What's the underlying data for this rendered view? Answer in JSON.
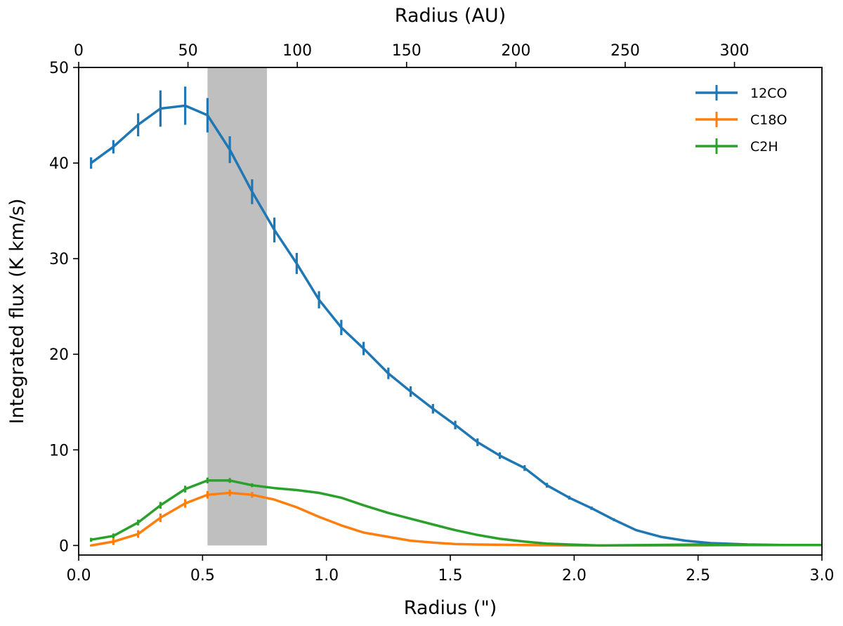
{
  "chart_data": {
    "type": "line",
    "xlabel": "Radius (\")",
    "ylabel": "Integrated flux (K km/s)",
    "top_xlabel": "Radius (AU)",
    "xlim": [
      0,
      3.0
    ],
    "ylim": [
      -1,
      50
    ],
    "top_xlim_au": [
      0,
      340
    ],
    "x_ticks": [
      0.0,
      0.5,
      1.0,
      1.5,
      2.0,
      2.5,
      3.0
    ],
    "x_tick_labels": [
      "0.0",
      "0.5",
      "1.0",
      "1.5",
      "2.0",
      "2.5",
      "3.0"
    ],
    "y_ticks": [
      0,
      10,
      20,
      30,
      40,
      50
    ],
    "y_tick_labels": [
      "0",
      "10",
      "20",
      "30",
      "40",
      "50"
    ],
    "top_ticks_au": [
      0,
      50,
      100,
      150,
      200,
      250,
      300
    ],
    "top_tick_labels": [
      "0",
      "50",
      "100",
      "150",
      "200",
      "250",
      "300"
    ],
    "grid": false,
    "legend_position": "top-right",
    "shaded_region": {
      "x_from": 0.52,
      "x_to": 0.76,
      "color": "#bfbfbf"
    },
    "series": [
      {
        "name": "12CO",
        "color": "#1f77b4",
        "points": [
          [
            0.05,
            40.0,
            0.6
          ],
          [
            0.14,
            41.7,
            0.7
          ],
          [
            0.24,
            44.0,
            1.2
          ],
          [
            0.33,
            45.7,
            1.9
          ],
          [
            0.43,
            46.0,
            2.0
          ],
          [
            0.52,
            45.0,
            1.8
          ],
          [
            0.61,
            41.4,
            1.4
          ],
          [
            0.7,
            37.0,
            1.3
          ],
          [
            0.79,
            33.0,
            1.3
          ],
          [
            0.88,
            29.5,
            1.1
          ],
          [
            0.97,
            25.7,
            0.9
          ],
          [
            1.06,
            22.8,
            0.8
          ],
          [
            1.15,
            20.6,
            0.7
          ],
          [
            1.25,
            18.0,
            0.6
          ],
          [
            1.34,
            16.1,
            0.55
          ],
          [
            1.43,
            14.3,
            0.5
          ],
          [
            1.52,
            12.6,
            0.45
          ],
          [
            1.61,
            10.8,
            0.4
          ],
          [
            1.7,
            9.4,
            0.35
          ],
          [
            1.8,
            8.1,
            0.3
          ],
          [
            1.89,
            6.3,
            0.25
          ],
          [
            1.98,
            5.0,
            0.2
          ],
          [
            2.07,
            3.9,
            0.18
          ],
          [
            2.16,
            2.7,
            0.15
          ],
          [
            2.25,
            1.6,
            0.1
          ],
          [
            2.35,
            0.9,
            0.08
          ],
          [
            2.45,
            0.5,
            0.05
          ],
          [
            2.55,
            0.25,
            0.03
          ],
          [
            2.7,
            0.1,
            0.0
          ],
          [
            2.85,
            0.05,
            0.0
          ],
          [
            3.0,
            0.05,
            0.0
          ]
        ]
      },
      {
        "name": "C18O",
        "color": "#ff7f0e",
        "points": [
          [
            0.05,
            0.0,
            0.1
          ],
          [
            0.14,
            0.4,
            0.35
          ],
          [
            0.24,
            1.2,
            0.4
          ],
          [
            0.33,
            2.9,
            0.45
          ],
          [
            0.43,
            4.4,
            0.45
          ],
          [
            0.52,
            5.3,
            0.4
          ],
          [
            0.61,
            5.5,
            0.35
          ],
          [
            0.7,
            5.3,
            0.3
          ],
          [
            0.79,
            4.8,
            0.0
          ],
          [
            0.88,
            4.0,
            0.0
          ],
          [
            0.97,
            3.0,
            0.0
          ],
          [
            1.06,
            2.1,
            0.0
          ],
          [
            1.15,
            1.35,
            0.0
          ],
          [
            1.25,
            0.9,
            0.0
          ],
          [
            1.34,
            0.5,
            0.0
          ],
          [
            1.43,
            0.3,
            0.0
          ],
          [
            1.52,
            0.15,
            0.0
          ],
          [
            1.61,
            0.1,
            0.0
          ],
          [
            1.8,
            0.05,
            0.0
          ],
          [
            2.0,
            0.0,
            0.0
          ],
          [
            2.2,
            0.0,
            0.0
          ],
          [
            2.5,
            0.0,
            0.0
          ],
          [
            2.7,
            0.05,
            0.0
          ],
          [
            3.0,
            0.05,
            0.0
          ]
        ]
      },
      {
        "name": "C2H",
        "color": "#2ca02c",
        "points": [
          [
            0.05,
            0.6,
            0.2
          ],
          [
            0.14,
            1.0,
            0.25
          ],
          [
            0.24,
            2.4,
            0.3
          ],
          [
            0.33,
            4.2,
            0.35
          ],
          [
            0.43,
            5.9,
            0.35
          ],
          [
            0.52,
            6.8,
            0.3
          ],
          [
            0.61,
            6.8,
            0.25
          ],
          [
            0.7,
            6.3,
            0.2
          ],
          [
            0.79,
            6.0,
            0.0
          ],
          [
            0.88,
            5.8,
            0.0
          ],
          [
            0.97,
            5.5,
            0.0
          ],
          [
            1.06,
            5.0,
            0.0
          ],
          [
            1.15,
            4.2,
            0.0
          ],
          [
            1.25,
            3.4,
            0.0
          ],
          [
            1.34,
            2.8,
            0.0
          ],
          [
            1.43,
            2.2,
            0.0
          ],
          [
            1.52,
            1.6,
            0.0
          ],
          [
            1.61,
            1.1,
            0.0
          ],
          [
            1.7,
            0.7,
            0.0
          ],
          [
            1.8,
            0.4,
            0.0
          ],
          [
            1.89,
            0.2,
            0.0
          ],
          [
            1.98,
            0.1,
            0.0
          ],
          [
            2.1,
            0.0,
            0.0
          ],
          [
            2.3,
            0.05,
            0.0
          ],
          [
            2.5,
            0.1,
            0.0
          ],
          [
            2.7,
            0.05,
            0.0
          ],
          [
            3.0,
            0.05,
            0.0
          ]
        ]
      }
    ]
  }
}
